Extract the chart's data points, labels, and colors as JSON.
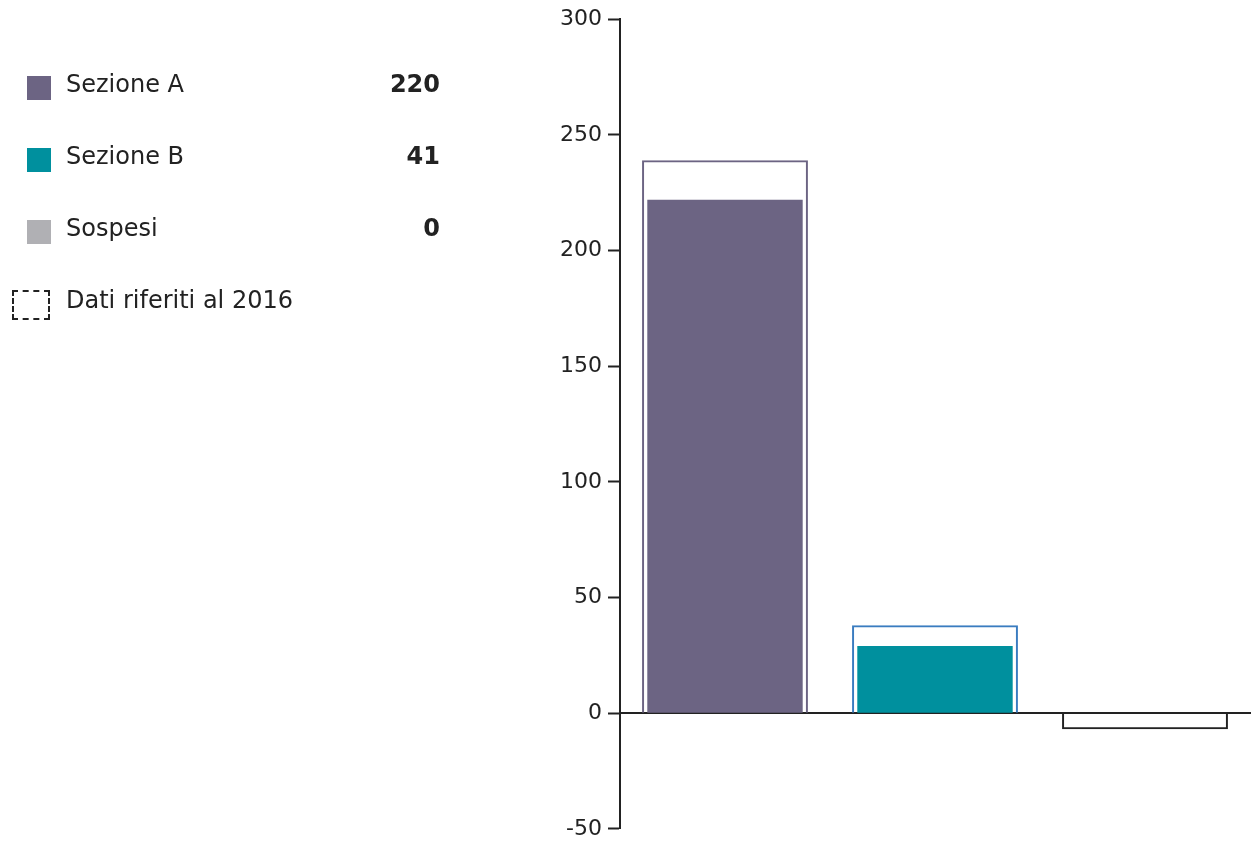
{
  "chart_data": {
    "type": "bar",
    "categories": [
      null,
      null,
      null
    ],
    "series": [
      {
        "name": "Sezione A",
        "color": "#6c6483",
        "values": [
          222,
          null,
          null
        ]
      },
      {
        "name": "Sezione B",
        "color": "#00909e",
        "values": [
          null,
          29,
          null
        ]
      },
      {
        "name": "Sospesi",
        "color": "#b0b0b4",
        "values": [
          null,
          null,
          0
        ]
      },
      {
        "name": "Dati riferiti al 2016",
        "colors": [
          "#6c6483",
          "#3a7cc0",
          "#222222"
        ],
        "line_style": "dashed",
        "values": [
          239,
          38,
          -7
        ]
      }
    ],
    "ylim": [
      -50,
      300
    ],
    "yticks": [
      -50,
      0,
      50,
      100,
      150,
      200,
      250,
      300
    ],
    "tick_labels": "y",
    "legend": "left",
    "annotations": [
      "220",
      "41",
      "0"
    ]
  }
}
